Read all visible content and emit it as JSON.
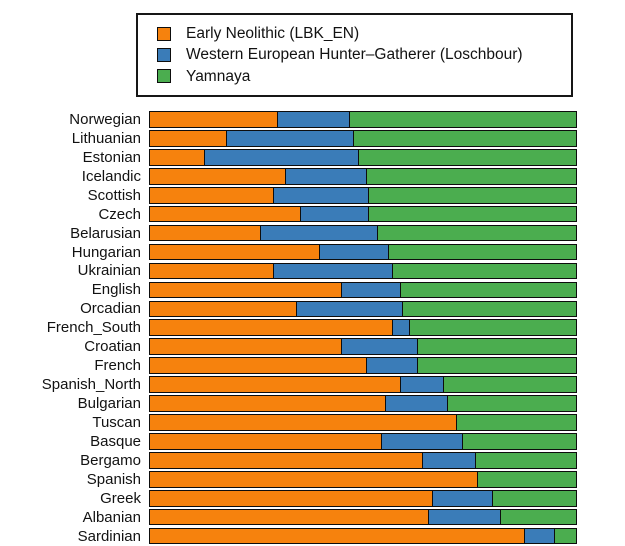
{
  "colors": {
    "early_neolithic": "#F6820D",
    "hunter_gatherer": "#3A7CB8",
    "yamnaya": "#4BAD4F",
    "segment_border": "#0d0d0d",
    "text": "#121212",
    "background": "#ffffff"
  },
  "legend": {
    "items": [
      {
        "label": "Early Neolithic (LBK_EN)",
        "color": "#F6820D"
      },
      {
        "label": "Western European Hunter–Gatherer (Loschbour)",
        "color": "#3A7CB8"
      },
      {
        "label": "Yamnaya",
        "color": "#4BAD4F"
      }
    ]
  },
  "chart_data": {
    "type": "bar",
    "orientation": "horizontal",
    "stacked": true,
    "title": "",
    "xlabel": "",
    "ylabel": "",
    "xlim": [
      0,
      1
    ],
    "grid": false,
    "axes_hidden": true,
    "legend_position": "top",
    "categories": [
      "Norwegian",
      "Lithuanian",
      "Estonian",
      "Icelandic",
      "Scottish",
      "Czech",
      "Belarusian",
      "Hungarian",
      "Ukrainian",
      "English",
      "Orcadian",
      "French_South",
      "Croatian",
      "French",
      "Spanish_North",
      "Bulgarian",
      "Tuscan",
      "Basque",
      "Bergamo",
      "Spanish",
      "Greek",
      "Albanian",
      "Sardinian"
    ],
    "series": [
      {
        "name": "Early Neolithic (LBK_EN)",
        "color": "#F6820D",
        "values": [
          0.3,
          0.18,
          0.13,
          0.32,
          0.29,
          0.355,
          0.26,
          0.4,
          0.29,
          0.45,
          0.345,
          0.57,
          0.45,
          0.51,
          0.59,
          0.555,
          0.72,
          0.545,
          0.64,
          0.77,
          0.665,
          0.655,
          0.88
        ]
      },
      {
        "name": "Western European Hunter–Gatherer (Loschbour)",
        "color": "#3A7CB8",
        "values": [
          0.17,
          0.3,
          0.36,
          0.19,
          0.225,
          0.16,
          0.275,
          0.16,
          0.28,
          0.14,
          0.25,
          0.04,
          0.18,
          0.12,
          0.1,
          0.145,
          0.0,
          0.19,
          0.125,
          0.0,
          0.14,
          0.17,
          0.07
        ]
      },
      {
        "name": "Yamnaya",
        "color": "#4BAD4F",
        "values": [
          0.53,
          0.52,
          0.51,
          0.49,
          0.485,
          0.485,
          0.465,
          0.44,
          0.43,
          0.41,
          0.405,
          0.39,
          0.37,
          0.37,
          0.31,
          0.3,
          0.28,
          0.265,
          0.235,
          0.23,
          0.195,
          0.175,
          0.05
        ]
      }
    ]
  }
}
